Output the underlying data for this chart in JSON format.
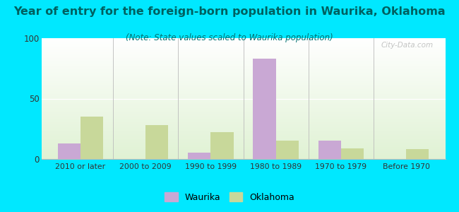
{
  "title": "Year of entry for the foreign-born population in Waurika, Oklahoma",
  "subtitle": "(Note: State values scaled to Waurika population)",
  "categories": [
    "2010 or later",
    "2000 to 2009",
    "1990 to 1999",
    "1980 to 1989",
    "1970 to 1979",
    "Before 1970"
  ],
  "waurika_values": [
    13,
    0,
    5,
    83,
    15,
    0
  ],
  "oklahoma_values": [
    35,
    28,
    22,
    15,
    9,
    8
  ],
  "waurika_color": "#c9a8d4",
  "oklahoma_color": "#c8d89a",
  "background_outer": "#00e8ff",
  "ylim": [
    0,
    100
  ],
  "yticks": [
    0,
    50,
    100
  ],
  "bar_width": 0.35,
  "legend_waurika": "Waurika",
  "legend_oklahoma": "Oklahoma",
  "title_fontsize": 11.5,
  "subtitle_fontsize": 8.5,
  "watermark": "City-Data.com"
}
